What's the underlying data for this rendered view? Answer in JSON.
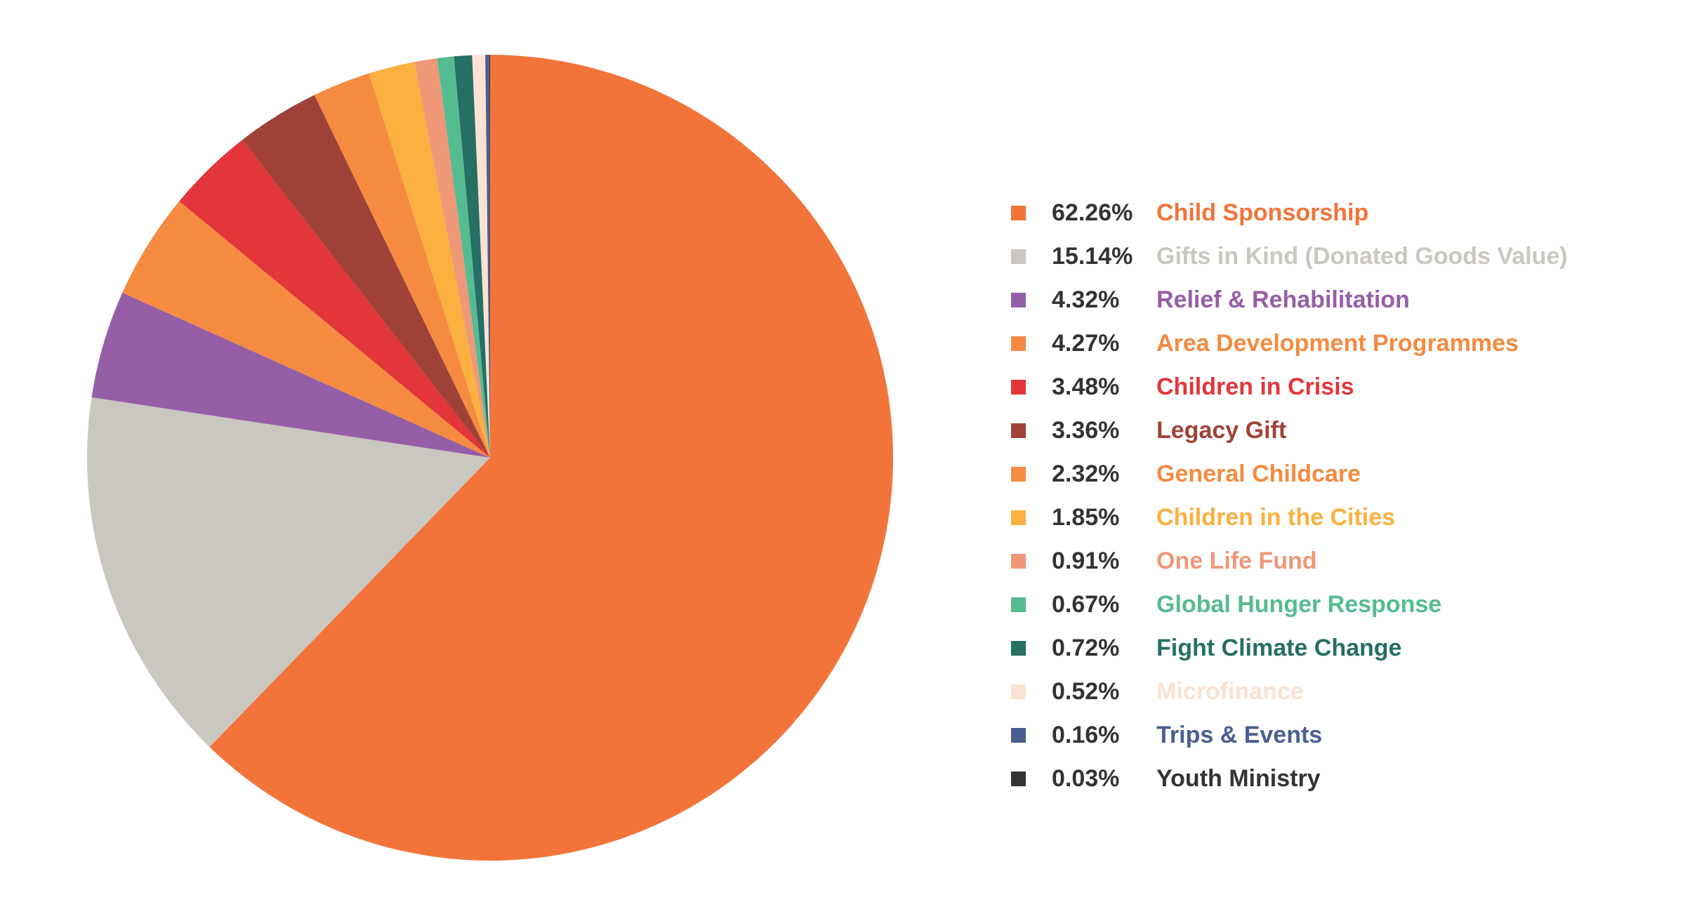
{
  "chart_data": {
    "type": "pie",
    "title": "",
    "legend_position": "right",
    "slices": [
      {
        "label": "Child Sponsorship",
        "pct_label": "62.26%",
        "value": 62.26,
        "color": "#F2743A"
      },
      {
        "label": "Gifts in Kind (Donated Goods Value)",
        "pct_label": "15.14%",
        "value": 15.14,
        "color": "#CAC7C0"
      },
      {
        "label": "Relief & Rehabilitation",
        "pct_label": "4.32%",
        "value": 4.32,
        "color": "#965EA7"
      },
      {
        "label": "Area Development Programmes",
        "pct_label": "4.27%",
        "value": 4.27,
        "color": "#F48B41"
      },
      {
        "label": "Children in Crisis",
        "pct_label": "3.48%",
        "value": 3.48,
        "color": "#E2363B"
      },
      {
        "label": "Legacy Gift",
        "pct_label": "3.36%",
        "value": 3.36,
        "color": "#A04237"
      },
      {
        "label": "General Childcare",
        "pct_label": "2.32%",
        "value": 2.32,
        "color": "#F48B41"
      },
      {
        "label": "Children in the Cities",
        "pct_label": "1.85%",
        "value": 1.85,
        "color": "#FBB040"
      },
      {
        "label": "One Life Fund",
        "pct_label": "0.91%",
        "value": 0.91,
        "color": "#EE9878"
      },
      {
        "label": "Global Hunger Response",
        "pct_label": "0.67%",
        "value": 0.67,
        "color": "#55BB91"
      },
      {
        "label": "Fight Climate Change",
        "pct_label": "0.72%",
        "value": 0.72,
        "color": "#266F64"
      },
      {
        "label": "Microfinance",
        "pct_label": "0.52%",
        "value": 0.52,
        "color": "#FCE2D3"
      },
      {
        "label": "Trips & Events",
        "pct_label": "0.16%",
        "value": 0.16,
        "color": "#4A5F92"
      },
      {
        "label": "Youth Ministry",
        "pct_label": "0.03%",
        "value": 0.03,
        "color": "#333333"
      }
    ]
  }
}
